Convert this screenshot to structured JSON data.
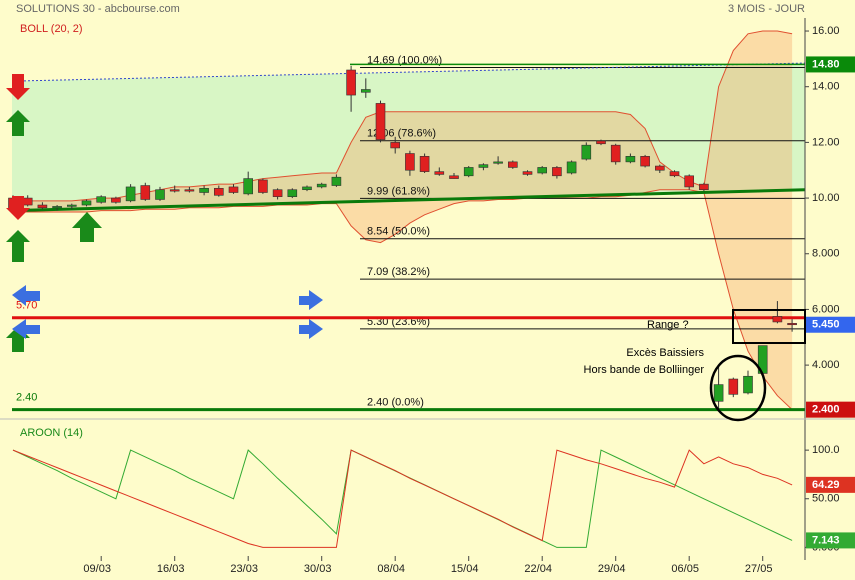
{
  "chart_data": [
    {
      "type": "candlestick",
      "title": "SOLUTIONS 30 - abcbourse.com",
      "subtitle": "3 MOIS - JOUR",
      "indicator": "BOLL (20, 2)",
      "categories": [
        null,
        null,
        null,
        null,
        null,
        null,
        "09/03",
        null,
        null,
        null,
        null,
        "16/03",
        null,
        null,
        null,
        null,
        "23/03",
        null,
        null,
        null,
        null,
        "30/03",
        null,
        null,
        null,
        null,
        "08/04",
        null,
        null,
        null,
        null,
        "15/04",
        null,
        null,
        null,
        null,
        "22/04",
        null,
        null,
        null,
        null,
        "29/04",
        null,
        null,
        null,
        null,
        "06/05",
        null,
        null,
        null,
        null,
        "27/05",
        null,
        null
      ],
      "open": [
        10.0,
        10.0,
        9.75,
        9.65,
        9.7,
        9.75,
        9.85,
        10.0,
        9.9,
        10.45,
        9.95,
        10.3,
        10.3,
        10.2,
        10.35,
        10.4,
        10.15,
        10.65,
        10.3,
        10.05,
        10.3,
        10.4,
        10.45,
        14.6,
        13.8,
        13.4,
        12.0,
        11.6,
        11.5,
        10.95,
        10.8,
        10.8,
        11.1,
        11.25,
        11.3,
        10.95,
        10.9,
        11.1,
        10.9,
        11.4,
        12.05,
        11.9,
        11.3,
        11.5,
        11.15,
        10.95,
        10.8,
        10.5,
        2.7,
        3.5,
        3.0,
        3.7,
        5.75,
        5.5
      ],
      "high": [
        10.1,
        10.1,
        9.85,
        9.75,
        9.8,
        9.95,
        10.1,
        10.05,
        10.5,
        10.55,
        10.4,
        10.45,
        10.4,
        10.45,
        10.45,
        10.5,
        10.95,
        10.7,
        10.35,
        10.35,
        10.45,
        10.55,
        10.85,
        14.75,
        14.3,
        13.5,
        12.2,
        11.7,
        11.6,
        11.1,
        10.9,
        11.15,
        11.25,
        11.5,
        11.35,
        11.0,
        11.15,
        11.15,
        11.35,
        12.0,
        12.1,
        11.95,
        11.6,
        11.55,
        11.2,
        11.0,
        10.85,
        10.55,
        4.0,
        3.55,
        3.8,
        4.7,
        6.3,
        5.65
      ],
      "low": [
        9.5,
        9.7,
        9.6,
        9.55,
        9.6,
        9.7,
        9.8,
        9.8,
        9.85,
        9.9,
        9.9,
        10.2,
        10.2,
        10.1,
        10.05,
        10.15,
        10.1,
        10.15,
        9.95,
        10.0,
        10.25,
        10.35,
        10.4,
        13.1,
        13.6,
        12.0,
        11.6,
        10.8,
        10.9,
        10.8,
        10.7,
        10.75,
        11.0,
        11.2,
        11.05,
        10.8,
        10.85,
        10.7,
        10.85,
        11.35,
        11.9,
        11.2,
        11.25,
        11.1,
        10.9,
        10.75,
        10.3,
        10.25,
        2.4,
        2.85,
        2.95,
        3.65,
        5.5,
        5.2
      ],
      "close": [
        9.6,
        9.75,
        9.65,
        9.7,
        9.75,
        9.9,
        10.05,
        9.85,
        10.4,
        9.95,
        10.3,
        10.25,
        10.25,
        10.35,
        10.1,
        10.2,
        10.7,
        10.2,
        10.05,
        10.3,
        10.4,
        10.5,
        10.75,
        13.7,
        13.9,
        12.1,
        11.8,
        11.0,
        10.95,
        10.85,
        10.7,
        11.1,
        11.2,
        11.3,
        11.1,
        10.85,
        11.1,
        10.8,
        11.3,
        11.9,
        11.95,
        11.3,
        11.5,
        11.15,
        11.0,
        10.8,
        10.4,
        10.3,
        3.3,
        2.95,
        3.6,
        4.7,
        5.55,
        5.45
      ],
      "up_color": "#22a022",
      "down_color": "#e02020",
      "series": [
        {
          "name": "upper",
          "color": "#e05030",
          "values": [
            9.9,
            9.9,
            9.9,
            9.9,
            9.9,
            9.95,
            10.0,
            10.0,
            10.1,
            10.2,
            10.3,
            10.4,
            10.4,
            10.45,
            10.5,
            10.5,
            10.6,
            10.7,
            10.75,
            10.8,
            10.85,
            10.9,
            10.9,
            12.0,
            12.9,
            13.1,
            13.1,
            13.1,
            13.1,
            13.1,
            13.1,
            13.1,
            13.1,
            13.1,
            13.1,
            13.1,
            13.1,
            13.1,
            13.1,
            13.1,
            13.1,
            13.1,
            13.0,
            12.5,
            11.3,
            10.9,
            10.6,
            10.4,
            14.0,
            15.3,
            15.9,
            16.0,
            16.0,
            15.9
          ]
        },
        {
          "name": "lower",
          "color": "#e05030",
          "values": [
            9.5,
            9.5,
            9.5,
            9.5,
            9.5,
            9.5,
            9.55,
            9.55,
            9.55,
            9.6,
            9.6,
            9.6,
            9.65,
            9.65,
            9.65,
            9.7,
            9.7,
            9.7,
            9.75,
            9.75,
            9.75,
            9.8,
            9.8,
            9.0,
            8.5,
            8.4,
            8.7,
            9.1,
            9.4,
            9.6,
            9.8,
            9.9,
            9.9,
            9.95,
            9.95,
            10.0,
            10.0,
            10.0,
            10.0,
            10.0,
            10.05,
            10.05,
            10.1,
            10.2,
            10.3,
            10.3,
            10.3,
            10.2,
            8.0,
            6.0,
            4.5,
            3.6,
            2.9,
            2.4
          ]
        }
      ],
      "trendlines": [
        {
          "start": 9.55,
          "end": 10.3,
          "color": "#0a7a0a"
        },
        {
          "start": 14.2,
          "end": 14.85,
          "color": "#3344cc"
        }
      ],
      "fibonacci": [
        {
          "value": 14.69,
          "label": "14.69 (100.0%)"
        },
        {
          "value": 12.06,
          "label": "12.06 (78.6%)"
        },
        {
          "value": 9.99,
          "label": "9.99 (61.8%)"
        },
        {
          "value": 8.54,
          "label": "8.54 (50.0%)"
        },
        {
          "value": 7.09,
          "label": "7.09 (38.2%)"
        },
        {
          "value": 5.3,
          "label": "5.30 (23.6%)"
        },
        {
          "value": 2.4,
          "label": "2.40 (0.0%)"
        }
      ],
      "levels": [
        {
          "value": 5.7,
          "label": "5.70",
          "color": "#e01010"
        },
        {
          "value": 2.4,
          "label": "2.40",
          "color": "#0a7a0a"
        }
      ],
      "price_markers": [
        {
          "value": 14.8,
          "label": "14.80",
          "color": "#0a8a0a"
        },
        {
          "value": 5.45,
          "label": "5.450",
          "color": "#3366ee"
        },
        {
          "value": 2.4,
          "label": "2.400",
          "color": "#cc1010"
        }
      ],
      "annotations": [
        "Range ?",
        "Excès Baissiers",
        "Hors bande de Bolliinger"
      ],
      "ylim": [
        2.1,
        16.45
      ],
      "yticks": [
        {
          "value": 16,
          "label": "16.00"
        },
        {
          "value": 14,
          "label": "14.00"
        },
        {
          "value": 12,
          "label": "12.00"
        },
        {
          "value": 10,
          "label": "10.00"
        },
        {
          "value": 8,
          "label": "8.000"
        },
        {
          "value": 6,
          "label": "6.000"
        },
        {
          "value": 4,
          "label": "4.000"
        }
      ]
    },
    {
      "type": "line",
      "title": "AROON (14)",
      "series": [
        {
          "name": "up",
          "color": "#33aa33",
          "values": [
            100,
            93,
            86,
            79,
            71,
            64,
            57,
            50,
            100,
            93,
            86,
            79,
            71,
            64,
            57,
            50,
            100,
            86,
            71,
            57,
            43,
            29,
            14,
            100,
            92.9,
            85.7,
            78.6,
            71.4,
            64.3,
            57.1,
            50,
            42.9,
            35.7,
            28.6,
            21.4,
            14.3,
            7.1,
            0,
            0,
            0,
            100,
            92.9,
            85.7,
            78.6,
            71.4,
            64.3,
            57.1,
            50,
            42.9,
            35.7,
            28.6,
            21.4,
            14.3,
            7.143
          ],
          "marker_label": "7.143"
        },
        {
          "name": "down",
          "color": "#dd3322",
          "values": [
            100,
            94,
            88,
            82,
            76,
            70,
            64,
            58,
            52,
            46,
            40,
            34,
            28,
            22,
            16,
            10,
            4,
            0,
            0,
            0,
            0,
            0,
            0,
            100,
            93,
            86,
            79,
            71,
            64,
            57,
            50,
            43,
            36,
            29,
            21,
            14,
            7,
            100,
            95,
            90,
            86,
            81,
            76,
            71,
            67,
            62,
            100,
            86,
            93,
            86,
            82,
            75,
            71,
            64.29
          ],
          "marker_label": "64.29"
        }
      ],
      "ylim": [
        -13,
        131
      ],
      "yticks": [
        {
          "value": 100,
          "label": "100.0"
        },
        {
          "value": 50,
          "label": "50.00"
        },
        {
          "value": 0,
          "label": "0.000"
        }
      ]
    }
  ]
}
